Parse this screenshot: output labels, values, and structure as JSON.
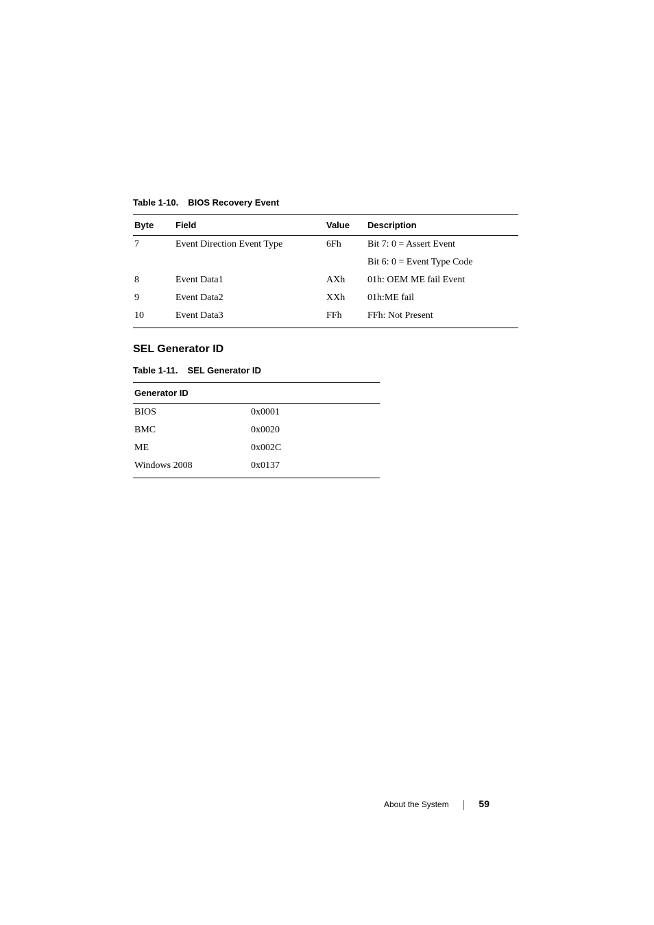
{
  "table1": {
    "caption_number": "Table 1-10.",
    "caption_title": "BIOS Recovery Event",
    "headers": [
      "Byte",
      "Field",
      "Value",
      "Description"
    ],
    "rows": [
      {
        "c0": "7",
        "c1": "Event Direction Event Type",
        "c2": "6Fh",
        "c3": "Bit 7: 0 = Assert Event"
      },
      {
        "c0": "",
        "c1": "",
        "c2": "",
        "c3": "Bit 6: 0 = Event Type Code"
      },
      {
        "c0": "8",
        "c1": "Event Data1",
        "c2": "AXh",
        "c3": "01h: OEM ME fail Event"
      },
      {
        "c0": "9",
        "c1": "Event Data2",
        "c2": "XXh",
        "c3": "01h:ME fail"
      },
      {
        "c0": "10",
        "c1": "Event Data3",
        "c2": "FFh",
        "c3": "FFh: Not Present"
      }
    ],
    "col_widths": [
      "60px",
      "220px",
      "60px",
      "auto"
    ]
  },
  "section_heading": "SEL Generator ID",
  "table2": {
    "caption_number": "Table 1-11.",
    "caption_title": "SEL Generator ID",
    "headers": [
      "Generator ID",
      ""
    ],
    "rows": [
      {
        "c0": "BIOS",
        "c1": "0x0001"
      },
      {
        "c0": "BMC",
        "c1": "0x0020"
      },
      {
        "c0": "ME",
        "c1": "0x002C"
      },
      {
        "c0": "Windows 2008",
        "c1": "0x0137"
      }
    ],
    "col_widths": [
      "170px",
      "auto"
    ]
  },
  "footer": {
    "section": "About the System",
    "page": "59"
  }
}
